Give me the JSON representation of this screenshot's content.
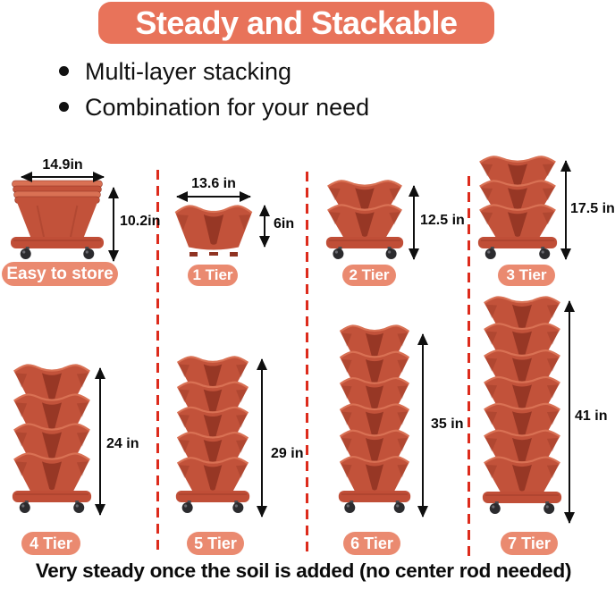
{
  "header": {
    "title": "Steady and Stackable"
  },
  "bullets": {
    "item1": "Multi-layer stacking",
    "item2": "Combination for your need"
  },
  "products": [
    {
      "label": "Easy to store",
      "width": "14.9in",
      "height": "10.2in",
      "tiers": 0,
      "style": "nested",
      "caddy": true
    },
    {
      "label": "1 Tier",
      "width": "13.6 in",
      "height": "6in",
      "tiers": 1,
      "style": "single",
      "caddy": false
    },
    {
      "label": "2 Tier",
      "height": "12.5 in",
      "tiers": 2,
      "style": "stack",
      "caddy": true
    },
    {
      "label": "3 Tier",
      "height": "17.5 in",
      "tiers": 3,
      "style": "stack",
      "caddy": true
    },
    {
      "label": "4 Tier",
      "height": "24 in",
      "tiers": 4,
      "style": "stack",
      "caddy": true
    },
    {
      "label": "5 Tier",
      "height": "29 in",
      "tiers": 5,
      "style": "stack",
      "caddy": true
    },
    {
      "label": "6 Tier",
      "height": "35 in",
      "tiers": 6,
      "style": "stack",
      "caddy": true
    },
    {
      "label": "7 Tier",
      "height": "41 in",
      "tiers": 7,
      "style": "stack",
      "caddy": true
    }
  ],
  "footer": {
    "text": "Very steady once the soil is added (no center rod needed)"
  },
  "colors": {
    "banner": "#E8735A",
    "pill": "#EA8A70",
    "pot": "#C2523A",
    "pot_light": "#D97154",
    "pot_dark": "#8F3322",
    "caddy": "#C04E37",
    "wheel": "#2B2B2E",
    "dash": "#DD2B1C"
  }
}
